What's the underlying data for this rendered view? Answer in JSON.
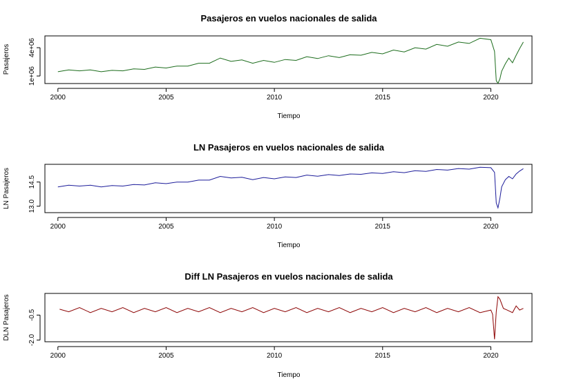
{
  "chart_data": [
    {
      "type": "line",
      "title": "Pasajeros en vuelos nacionales de salida",
      "xlabel": "Tiempo",
      "ylabel": "Pasajeros",
      "xlim": [
        1999.4,
        2021.9
      ],
      "ylim": [
        200000,
        5250000
      ],
      "xticks": [
        2000,
        2005,
        2010,
        2015,
        2020
      ],
      "yticks": [
        1000000,
        4000000
      ],
      "ytick_labels": [
        "1e+06",
        "4e+06"
      ],
      "color": "#1a6b1a",
      "grid": false,
      "series": [
        {
          "x": [
            2000,
            2000.5,
            2001,
            2001.5,
            2002,
            2002.5,
            2003,
            2003.5,
            2004,
            2004.5,
            2005,
            2005.5,
            2006,
            2006.5,
            2007,
            2007.5,
            2008,
            2008.5,
            2009,
            2009.5,
            2010,
            2010.5,
            2011,
            2011.5,
            2012,
            2012.5,
            2013,
            2013.5,
            2014,
            2014.5,
            2015,
            2015.5,
            2016,
            2016.5,
            2017,
            2017.5,
            2018,
            2018.5,
            2019,
            2019.5,
            2020,
            2020.17,
            2020.25,
            2020.33,
            2020.42,
            2020.5,
            2020.67,
            2020.83,
            2021,
            2021.17,
            2021.33,
            2021.5
          ],
          "values": [
            1450000,
            1650000,
            1550000,
            1650000,
            1450000,
            1600000,
            1550000,
            1750000,
            1700000,
            1950000,
            1850000,
            2050000,
            2050000,
            2350000,
            2350000,
            2900000,
            2550000,
            2700000,
            2350000,
            2650000,
            2450000,
            2750000,
            2650000,
            3050000,
            2850000,
            3150000,
            2950000,
            3250000,
            3200000,
            3500000,
            3350000,
            3750000,
            3550000,
            4000000,
            3850000,
            4350000,
            4150000,
            4600000,
            4450000,
            5000000,
            4850000,
            3600000,
            500000,
            230000,
            700000,
            1500000,
            2300000,
            2900000,
            2400000,
            3200000,
            3900000,
            4600000
          ]
        }
      ]
    },
    {
      "type": "line",
      "title": "LN Pasajeros en vuelos nacionales de salida",
      "xlabel": "Tiempo",
      "ylabel": "LN Pasajeros",
      "xlim": [
        1999.4,
        2021.9
      ],
      "ylim": [
        12.6,
        15.6
      ],
      "xticks": [
        2000,
        2005,
        2010,
        2015,
        2020
      ],
      "yticks": [
        13.0,
        14.5
      ],
      "ytick_labels": [
        "13.0",
        "14.5"
      ],
      "color": "#1a1a99",
      "grid": false,
      "series": [
        {
          "x": [
            2000,
            2000.5,
            2001,
            2001.5,
            2002,
            2002.5,
            2003,
            2003.5,
            2004,
            2004.5,
            2005,
            2005.5,
            2006,
            2006.5,
            2007,
            2007.5,
            2008,
            2008.5,
            2009,
            2009.5,
            2010,
            2010.5,
            2011,
            2011.5,
            2012,
            2012.5,
            2013,
            2013.5,
            2014,
            2014.5,
            2015,
            2015.5,
            2016,
            2016.5,
            2017,
            2017.5,
            2018,
            2018.5,
            2019,
            2019.5,
            2020,
            2020.17,
            2020.25,
            2020.33,
            2020.42,
            2020.5,
            2020.67,
            2020.83,
            2021,
            2021.17,
            2021.33,
            2021.5
          ],
          "values": [
            14.2,
            14.3,
            14.25,
            14.3,
            14.2,
            14.28,
            14.25,
            14.35,
            14.32,
            14.45,
            14.4,
            14.5,
            14.5,
            14.62,
            14.62,
            14.85,
            14.75,
            14.8,
            14.65,
            14.78,
            14.7,
            14.82,
            14.78,
            14.93,
            14.86,
            14.96,
            14.9,
            15.0,
            14.98,
            15.07,
            15.03,
            15.14,
            15.08,
            15.2,
            15.16,
            15.28,
            15.24,
            15.34,
            15.3,
            15.42,
            15.39,
            15.1,
            13.2,
            12.9,
            13.5,
            14.2,
            14.65,
            14.85,
            14.7,
            15.0,
            15.18,
            15.33
          ]
        }
      ]
    },
    {
      "type": "line",
      "title": "Diff LN Pasajeros en vuelos nacionales de salida",
      "xlabel": "Tiempo",
      "ylabel": "DLN Pasajeros",
      "xlim": [
        1999.4,
        2021.9
      ],
      "ylim": [
        -2.1,
        0.8
      ],
      "xticks": [
        2000,
        2005,
        2010,
        2015,
        2020
      ],
      "yticks": [
        -2.0,
        -0.5
      ],
      "ytick_labels": [
        "-2.0",
        "-0.5"
      ],
      "color": "#8b0000",
      "grid": false,
      "series": [
        {
          "x": [
            2000.08,
            2000.5,
            2001,
            2001.5,
            2002,
            2002.5,
            2003,
            2003.5,
            2004,
            2004.5,
            2005,
            2005.5,
            2006,
            2006.5,
            2007,
            2007.5,
            2008,
            2008.5,
            2009,
            2009.5,
            2010,
            2010.5,
            2011,
            2011.5,
            2012,
            2012.5,
            2013,
            2013.5,
            2014,
            2014.5,
            2015,
            2015.5,
            2016,
            2016.5,
            2017,
            2017.5,
            2018,
            2018.5,
            2019,
            2019.5,
            2020,
            2020.08,
            2020.17,
            2020.25,
            2020.33,
            2020.42,
            2020.58,
            2020.75,
            2021,
            2021.17,
            2021.33,
            2021.5
          ],
          "values": [
            -0.15,
            -0.3,
            -0.05,
            -0.35,
            -0.1,
            -0.3,
            -0.05,
            -0.35,
            -0.1,
            -0.3,
            -0.05,
            -0.35,
            -0.1,
            -0.3,
            -0.05,
            -0.35,
            -0.1,
            -0.3,
            -0.05,
            -0.35,
            -0.1,
            -0.3,
            -0.05,
            -0.35,
            -0.1,
            -0.3,
            -0.05,
            -0.35,
            -0.1,
            -0.3,
            -0.05,
            -0.35,
            -0.1,
            -0.3,
            -0.05,
            -0.35,
            -0.1,
            -0.3,
            -0.05,
            -0.35,
            -0.2,
            -0.45,
            -1.95,
            -0.3,
            0.6,
            0.45,
            -0.1,
            -0.2,
            -0.35,
            0.05,
            -0.2,
            -0.1
          ]
        }
      ]
    }
  ]
}
